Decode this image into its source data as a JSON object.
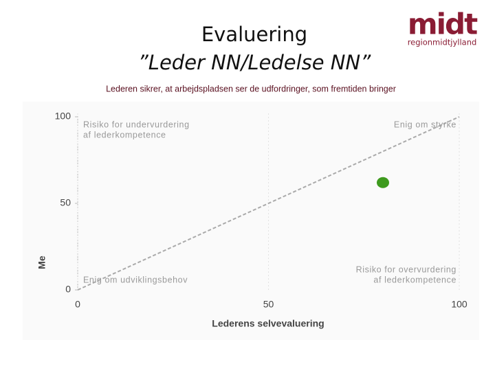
{
  "header": {
    "title_lines": [
      "Evaluering",
      "”Leder NN/Ledelse NN”"
    ],
    "logo": "midt",
    "logo_sub": "regionmidtjylland"
  },
  "chart_data": {
    "type": "scatter",
    "title": "Lederen sikrer, at arbejdspladsen ser de udfordringer, som fremtiden bringer",
    "x": [
      80
    ],
    "values": [
      62
    ],
    "color": "#3e9a1e",
    "xlim": [
      0,
      100
    ],
    "ylim": [
      0,
      100
    ],
    "xticks": [
      0,
      50,
      100
    ],
    "yticks": [
      0,
      50,
      100
    ],
    "xlabel": "Lederens selvevaluering",
    "ylabel": "Me",
    "diagonal": true,
    "annotations": [
      {
        "corner": "top-left",
        "lines": [
          "Risiko for undervurdering",
          "af lederkompetence"
        ]
      },
      {
        "corner": "top-right",
        "lines": [
          "Enig om styrke"
        ]
      },
      {
        "corner": "bottom-left",
        "lines": [
          "Enig om udviklingsbehov"
        ]
      },
      {
        "corner": "bottom-right",
        "lines": [
          "Risiko for overvurdering",
          "af lederkompetence"
        ]
      }
    ]
  }
}
